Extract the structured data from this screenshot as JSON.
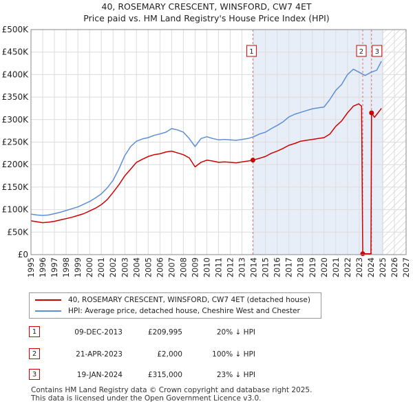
{
  "title_line1": "40, ROSEMARY CRESCENT, WINSFORD, CW7 4ET",
  "title_line2": "Price paid vs. HM Land Registry's House Price Index (HPI)",
  "chart_data": {
    "type": "line",
    "title": "Price paid vs. HM Land Registry's House Price Index (HPI)",
    "xlabel": "",
    "ylabel": "",
    "xlim": [
      1995,
      2027
    ],
    "ylim": [
      0,
      500000
    ],
    "y_ticks": [
      0,
      50000,
      100000,
      150000,
      200000,
      250000,
      300000,
      350000,
      400000,
      450000,
      500000
    ],
    "y_tick_labels": [
      "£0",
      "£50K",
      "£100K",
      "£150K",
      "£200K",
      "£250K",
      "£300K",
      "£350K",
      "£400K",
      "£450K",
      "£500K"
    ],
    "x_ticks": [
      1995,
      1996,
      1997,
      1998,
      1999,
      2000,
      2001,
      2002,
      2003,
      2004,
      2005,
      2006,
      2007,
      2008,
      2009,
      2010,
      2011,
      2012,
      2013,
      2014,
      2015,
      2016,
      2017,
      2018,
      2019,
      2020,
      2021,
      2022,
      2023,
      2024,
      2025,
      2026,
      2027
    ],
    "x_tick_labels": [
      "1995",
      "1996",
      "1997",
      "1998",
      "1999",
      "2000",
      "2001",
      "2002",
      "2003",
      "2004",
      "2005",
      "2006",
      "2007",
      "2008",
      "2009",
      "2010",
      "2011",
      "2012",
      "2013",
      "2014",
      "2015",
      "2016",
      "2017",
      "2018",
      "2019",
      "2020",
      "2021",
      "2022",
      "2023",
      "2024",
      "2025",
      "2026",
      "2027"
    ],
    "grid": true,
    "forecast_start": 2025.0,
    "shaded_from": 2013.93,
    "series": [
      {
        "name": "40, ROSEMARY CRESCENT, WINSFORD, CW7 4ET (detached house)",
        "color": "#cc0000",
        "x": [
          1995.0,
          1995.5,
          1996.0,
          1996.5,
          1997.0,
          1997.5,
          1998.0,
          1998.5,
          1999.0,
          1999.5,
          2000.0,
          2000.5,
          2001.0,
          2001.5,
          2002.0,
          2002.5,
          2003.0,
          2003.5,
          2004.0,
          2004.5,
          2005.0,
          2005.5,
          2006.0,
          2006.5,
          2007.0,
          2007.5,
          2008.0,
          2008.5,
          2009.0,
          2009.5,
          2010.0,
          2010.5,
          2011.0,
          2011.5,
          2012.0,
          2012.5,
          2013.0,
          2013.5,
          2013.93,
          2014.5,
          2015.0,
          2015.5,
          2016.0,
          2016.5,
          2017.0,
          2017.5,
          2018.0,
          2018.5,
          2019.0,
          2019.5,
          2020.0,
          2020.5,
          2021.0,
          2021.5,
          2022.0,
          2022.5,
          2022.95,
          2023.2,
          2023.3,
          2023.5,
          2023.8,
          2024.0,
          2024.05,
          2024.3,
          2024.6,
          2024.9
        ],
        "values": [
          75000,
          73000,
          71000,
          72000,
          74000,
          77000,
          80000,
          83000,
          87000,
          91000,
          97000,
          103000,
          111000,
          122000,
          138000,
          155000,
          175000,
          190000,
          205000,
          212000,
          218000,
          222000,
          224000,
          228000,
          230000,
          226000,
          222000,
          215000,
          195000,
          205000,
          210000,
          208000,
          205000,
          206000,
          205000,
          204000,
          206000,
          208000,
          209995,
          214000,
          218000,
          225000,
          230000,
          236000,
          243000,
          247000,
          252000,
          254000,
          256000,
          258000,
          260000,
          268000,
          285000,
          297000,
          315000,
          330000,
          335000,
          330000,
          2000,
          2000,
          2000,
          2000,
          315000,
          305000,
          315000,
          325000
        ]
      },
      {
        "name": "HPI: Average price, detached house, Cheshire West and Chester",
        "color": "#5b8ed6",
        "x": [
          1995.0,
          1995.5,
          1996.0,
          1996.5,
          1997.0,
          1997.5,
          1998.0,
          1998.5,
          1999.0,
          1999.5,
          2000.0,
          2000.5,
          2001.0,
          2001.5,
          2002.0,
          2002.5,
          2003.0,
          2003.5,
          2004.0,
          2004.5,
          2005.0,
          2005.5,
          2006.0,
          2006.5,
          2007.0,
          2007.5,
          2008.0,
          2008.5,
          2009.0,
          2009.5,
          2010.0,
          2010.5,
          2011.0,
          2011.5,
          2012.0,
          2012.5,
          2013.0,
          2013.5,
          2014.0,
          2014.5,
          2015.0,
          2015.5,
          2016.0,
          2016.5,
          2017.0,
          2017.5,
          2018.0,
          2018.5,
          2019.0,
          2019.5,
          2020.0,
          2020.5,
          2021.0,
          2021.5,
          2022.0,
          2022.5,
          2023.0,
          2023.5,
          2024.0,
          2024.5,
          2024.9
        ],
        "values": [
          90000,
          88000,
          87000,
          88000,
          91000,
          94000,
          98000,
          102000,
          106000,
          112000,
          118000,
          126000,
          135000,
          148000,
          165000,
          190000,
          220000,
          240000,
          252000,
          257000,
          260000,
          265000,
          268000,
          272000,
          280000,
          277000,
          272000,
          258000,
          240000,
          258000,
          262000,
          258000,
          255000,
          256000,
          255000,
          254000,
          256000,
          258000,
          262000,
          268000,
          272000,
          280000,
          287000,
          295000,
          306000,
          312000,
          316000,
          320000,
          324000,
          326000,
          328000,
          345000,
          365000,
          378000,
          400000,
          412000,
          405000,
          398000,
          405000,
          410000,
          430000
        ]
      }
    ],
    "markers": [
      {
        "label": "1",
        "x": 2013.93,
        "value": 209995
      },
      {
        "label": "2",
        "x": 2023.3,
        "value": 2000
      },
      {
        "label": "3",
        "x": 2024.05,
        "value": 315000
      }
    ]
  },
  "legend": {
    "series1": "40, ROSEMARY CRESCENT, WINSFORD, CW7 4ET (detached house)",
    "series2": "HPI: Average price, detached house, Cheshire West and Chester"
  },
  "transactions": [
    {
      "num": "1",
      "date": "09-DEC-2013",
      "price": "£209,995",
      "hpi": "20% ↓ HPI"
    },
    {
      "num": "2",
      "date": "21-APR-2023",
      "price": "£2,000",
      "hpi": "100% ↓ HPI"
    },
    {
      "num": "3",
      "date": "19-JAN-2024",
      "price": "£315,000",
      "hpi": "23% ↓ HPI"
    }
  ],
  "footer_line1": "Contains HM Land Registry data © Crown copyright and database right 2025.",
  "footer_line2": "This data is licensed under the Open Government Licence v3.0."
}
